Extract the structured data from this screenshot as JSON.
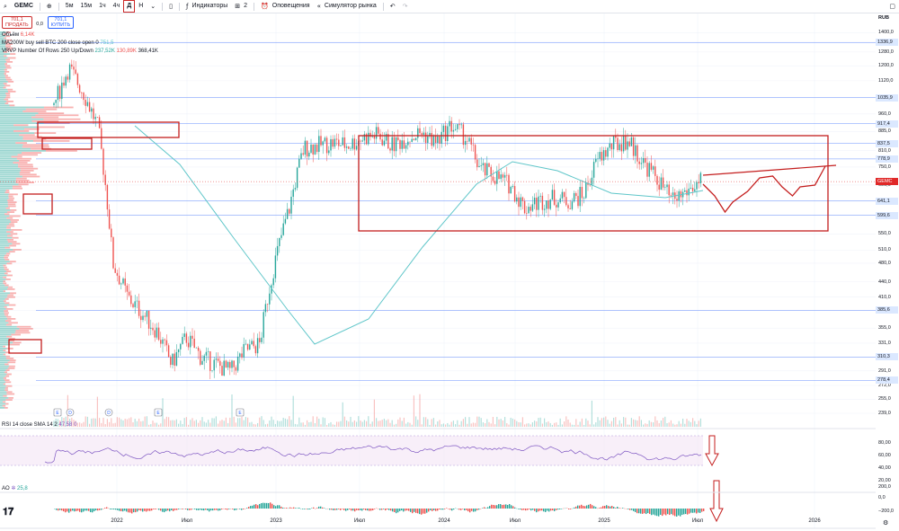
{
  "toolbar": {
    "symbol": "GEMC",
    "intervals": [
      "5м",
      "15м",
      "1ч",
      "4ч",
      "Д",
      "Н"
    ],
    "active_interval": "Д",
    "indicators": "Индикаторы",
    "layout_count": "2",
    "alerts": "Оповещения",
    "replay": "Симулятор рынка",
    "currency": "RUB"
  },
  "trade": {
    "sell_price": "701,1",
    "sell_label": "ПРОДАТЬ",
    "spread": "0,0",
    "buy_price": "701,1",
    "buy_label": "КУПИТЬ"
  },
  "legend": {
    "volume_label": "Объём",
    "volume_value": "6,14K",
    "ma_label": "MA200W buy sell BTC 200 close open 0",
    "ma_value": "751,5",
    "vrvp_label": "VRVP Number Of Rows 250 Up/Down",
    "vrvp_up": "237,52K",
    "vrvp_down": "130,89K",
    "vrvp_total": "368,41K"
  },
  "rsi": {
    "label": "RSI 14 close SMA 14 2",
    "value": "47,58",
    "value2": "0",
    "ticks": [
      "80,00",
      "60,00",
      "40,00",
      "20,00"
    ]
  },
  "ao": {
    "label": "AO",
    "value": "25,8",
    "ticks": [
      "200,0",
      "0,0",
      "−200,0"
    ]
  },
  "x_axis": [
    "2022",
    "Июл",
    "2023",
    "Июл",
    "2024",
    "Июл",
    "2025",
    "Июл",
    "2026"
  ],
  "price_ticks": [
    1400,
    1340,
    1280,
    1200,
    1120,
    1035,
    960,
    885,
    810,
    750,
    690,
    640,
    600,
    550,
    510,
    480,
    440,
    410,
    385,
    355,
    331,
    310,
    291,
    272,
    255,
    239
  ],
  "price_tick_labels": [
    "1400,0",
    "1340,0",
    "1280,0",
    "1200,0",
    "1120,0",
    "1035,0",
    "960,0",
    "885,0",
    "810,0",
    "750,0",
    "690,0",
    "640,0",
    "600,0",
    "550,0",
    "510,0",
    "480,0",
    "440,0",
    "410,0",
    "385,0",
    "355,0",
    "331,0",
    "310,0",
    "291,0",
    "272,0",
    "255,0",
    "239,0"
  ],
  "price_level_badges": [
    "1336,9",
    "1035,9",
    "917,4",
    "837,5",
    "778,9",
    "641,1",
    "599,6",
    "385,6",
    "310,3",
    "278,4"
  ],
  "last_price": {
    "symbol": "GEMC",
    "value": "701,1"
  },
  "colors": {
    "up": "#26a69a",
    "down": "#ef5350",
    "ma": "#5fc6c9",
    "annot": "#c41e1e",
    "rsi": "#7e57c2",
    "level": "#2962ff"
  },
  "chart_data": {
    "type": "line",
    "series": [
      {
        "x": [
          "2021-11",
          "2021-12",
          "2022-01",
          "2022-02",
          "2022-03",
          "2022-04",
          "2022-05",
          "2022-06",
          "2022-07",
          "2022-08",
          "2022-09",
          "2022-10",
          "2022-11",
          "2022-12",
          "2023-01",
          "2023-02",
          "2023-03",
          "2023-04",
          "2023-05",
          "2023-06",
          "2023-07",
          "2023-08",
          "2023-09",
          "2023-10",
          "2023-11",
          "2023-12",
          "2024-01",
          "2024-02",
          "2024-03",
          "2024-04",
          "2024-05",
          "2024-06",
          "2024-07",
          "2024-08",
          "2024-09",
          "2024-10",
          "2024-11",
          "2024-12",
          "2025-01",
          "2025-02",
          "2025-03",
          "2025-04",
          "2025-05",
          "2025-06",
          "2025-07"
        ],
        "values": [
          1000,
          1190,
          1060,
          900,
          480,
          410,
          380,
          350,
          300,
          340,
          310,
          300,
          290,
          320,
          330,
          480,
          620,
          820,
          830,
          840,
          830,
          860,
          870,
          830,
          860,
          880,
          840,
          910,
          860,
          740,
          720,
          690,
          620,
          640,
          650,
          640,
          660,
          780,
          830,
          850,
          770,
          710,
          640,
          670,
          701
        ]
      }
    ],
    "ma200w": {
      "name": "MA200W",
      "last": 751.5
    },
    "horizontal_levels": [
      1336.9,
      1035.9,
      917.4,
      837.5,
      778.9,
      641.1,
      599.6,
      385.6,
      310.3,
      278.4
    ],
    "last_price": 701.1,
    "ylim": [
      239,
      1420
    ],
    "rsi_levels": [
      70,
      30
    ],
    "legend": "top-left",
    "grid": true
  }
}
